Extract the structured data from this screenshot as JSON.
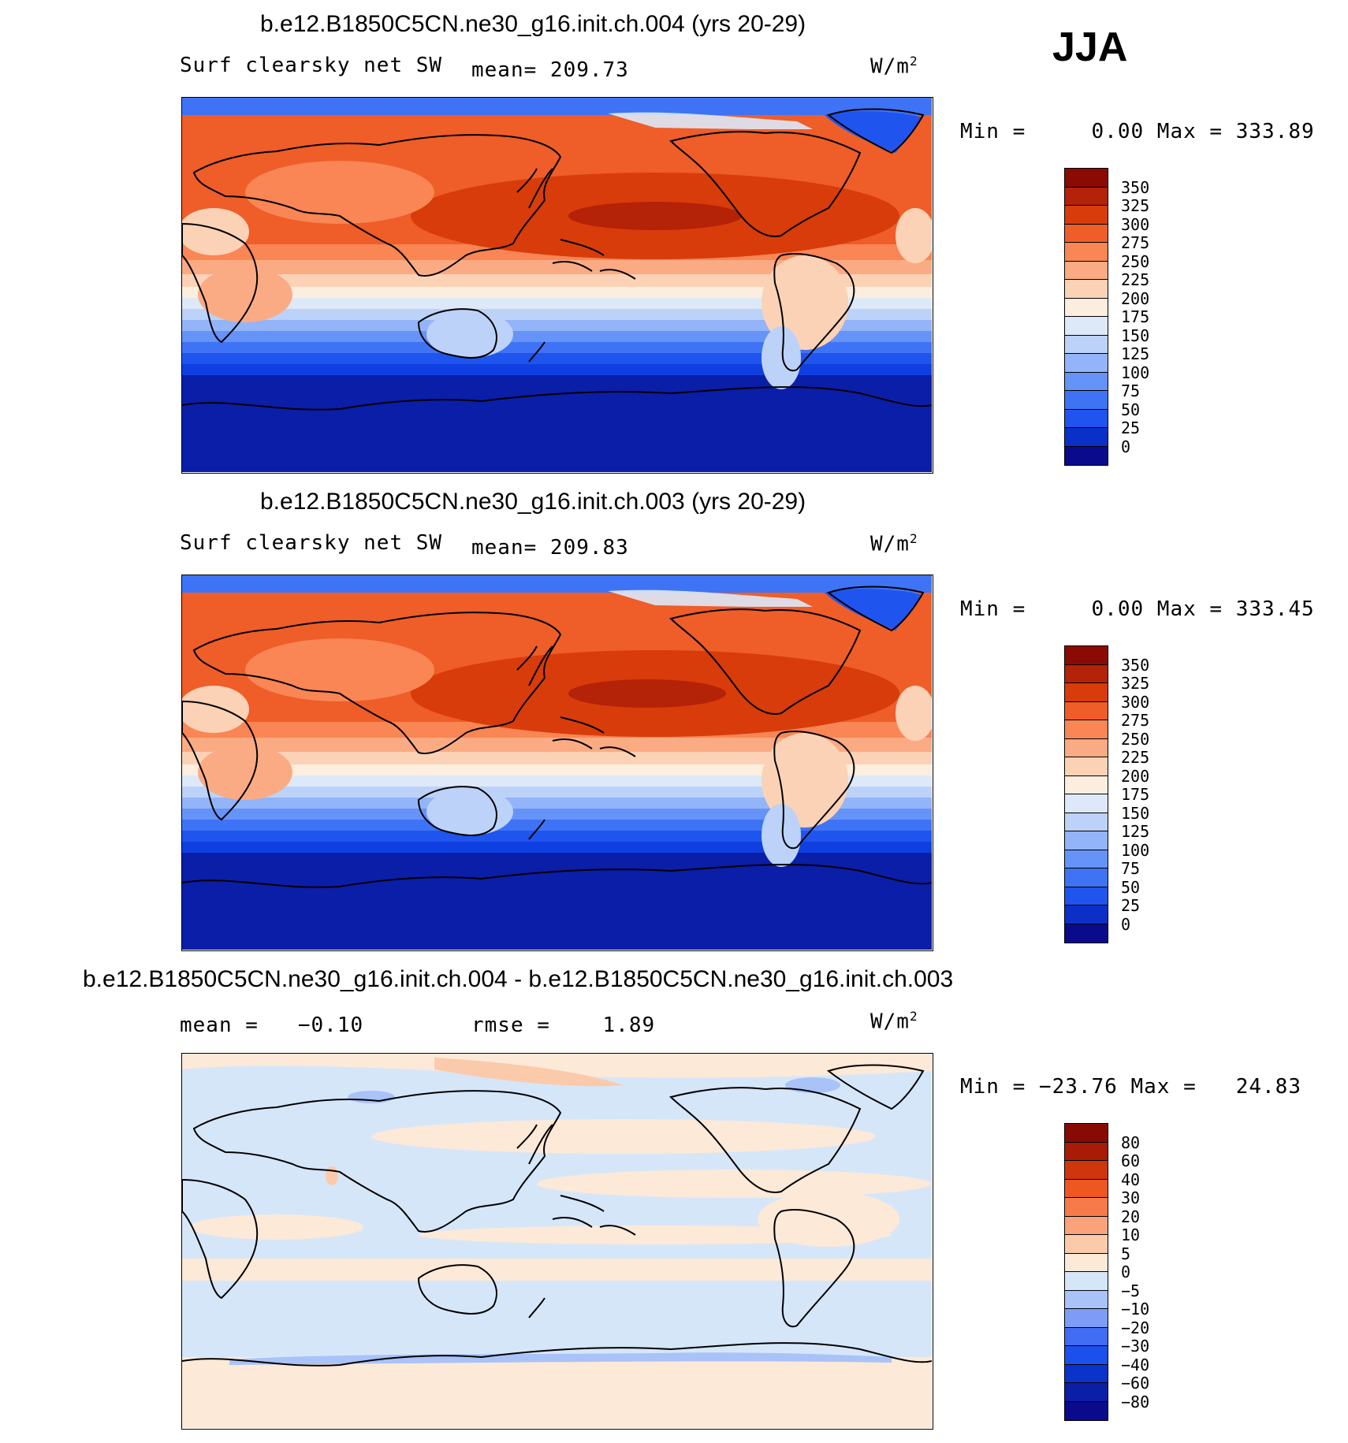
{
  "season": "JJA",
  "unit_base": "W/m",
  "unit_exp": "2",
  "palettes": {
    "abs": [
      "#0a0a8c",
      "#0a1ea8",
      "#0a30c8",
      "#0f3fe0",
      "#1f55ee",
      "#3e73f5",
      "#6693f7",
      "#93b4f8",
      "#bcd2f8",
      "#dde9f8",
      "#fbeedf",
      "#fcd2b6",
      "#fbab83",
      "#f98654",
      "#ef5d28",
      "#d83c0a",
      "#b42207",
      "#8b0a04"
    ],
    "diff": [
      "#0a0a8c",
      "#0a1ea8",
      "#0a33cc",
      "#1b50ec",
      "#416df4",
      "#7c9cf7",
      "#a9c3f8",
      "#d6e6f9",
      "#fde9d8",
      "#fbcaaa",
      "#f9a27c",
      "#f77b4a",
      "#ef5721",
      "#cf360c",
      "#a81b06",
      "#880a04"
    ]
  },
  "panels": [
    {
      "title": "b.e12.B1850C5CN.ne30_g16.init.ch.004 (yrs 20-29)",
      "variable": "Surf clearsky net SW",
      "stat1": "mean= 209.73",
      "stat2": "",
      "minmax": "Min =     0.00 Max = 333.89",
      "palette": "abs",
      "levels": [
        "350",
        "325",
        "300",
        "275",
        "250",
        "225",
        "200",
        "175",
        "150",
        "125",
        "100",
        "75",
        "50",
        "25",
        "0"
      ]
    },
    {
      "title": "b.e12.B1850C5CN.ne30_g16.init.ch.003 (yrs 20-29)",
      "variable": "Surf clearsky net SW",
      "stat1": "mean= 209.83",
      "stat2": "",
      "minmax": "Min =     0.00 Max = 333.45",
      "palette": "abs",
      "levels": [
        "350",
        "325",
        "300",
        "275",
        "250",
        "225",
        "200",
        "175",
        "150",
        "125",
        "100",
        "75",
        "50",
        "25",
        "0"
      ]
    },
    {
      "title": "b.e12.B1850C5CN.ne30_g16.init.ch.004 - b.e12.B1850C5CN.ne30_g16.init.ch.003",
      "variable": "",
      "stat1": "mean =   −0.10",
      "stat2": "rmse =    1.89",
      "minmax": "Min = −23.76 Max =   24.83",
      "palette": "diff",
      "levels": [
        "80",
        "60",
        "40",
        "30",
        "20",
        "10",
        "5",
        "0",
        "−5",
        "−10",
        "−20",
        "−30",
        "−40",
        "−60",
        "−80"
      ]
    }
  ]
}
